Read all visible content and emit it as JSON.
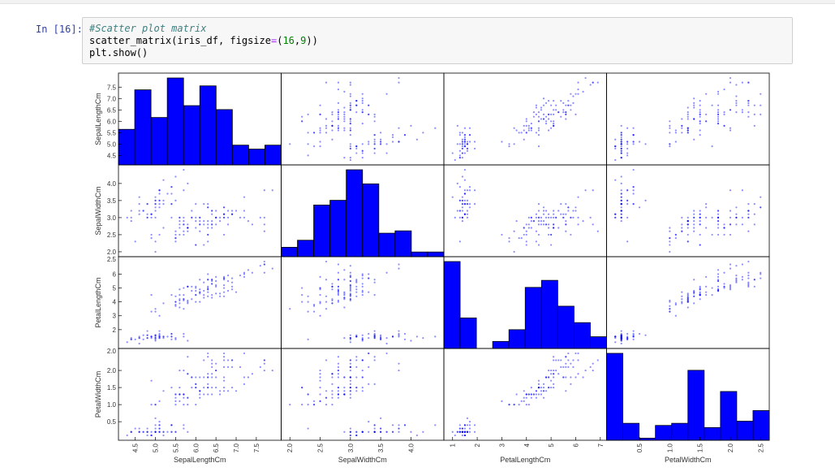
{
  "cell": {
    "prompt": "In [16]:",
    "lines": [
      {
        "comment": "#Scatter plot matrix"
      },
      {
        "parts": [
          "scatter_matrix(iris_df, figsize",
          "=",
          "(",
          "16",
          ",",
          "9",
          "))"
        ]
      },
      {
        "text": "plt.show()"
      }
    ]
  },
  "colors": {
    "marker": "#0000ff",
    "bar": "#0000ff",
    "edge": "#000000"
  },
  "chart_data": {
    "type": "scatter",
    "variables": [
      "SepalLengthCm",
      "SepalWidthCm",
      "PetalLengthCm",
      "PetalWidthCm"
    ],
    "ranges": [
      [
        4.3,
        7.9
      ],
      [
        2.0,
        4.4
      ],
      [
        1.0,
        6.9
      ],
      [
        0.1,
        2.5
      ]
    ],
    "y_ticks": [
      [
        4.5,
        5.0,
        5.5,
        6.0,
        6.5,
        7.0,
        7.5
      ],
      [
        2.0,
        2.5,
        3.0,
        3.5,
        4.0
      ],
      [
        2,
        3,
        4,
        5,
        6
      ],
      [
        0.5,
        1.0,
        1.5,
        2.0
      ]
    ],
    "x_ticks": [
      [
        "4.5",
        "5.0",
        "5.5",
        "6.0",
        "6.5",
        "7.0",
        "7.5"
      ],
      [
        "2.0",
        "2.5",
        "3.0",
        "3.5",
        "4.0"
      ],
      [
        "1",
        "2",
        "3",
        "4",
        "5",
        "6",
        "7"
      ],
      [
        "0.5",
        "1.0",
        "1.5",
        "2.0",
        "2.5"
      ]
    ],
    "y_tick_labels": [
      [
        "4.5",
        "5.0",
        "5.5",
        "6.0",
        "6.5",
        "7.0",
        "7.5"
      ],
      [
        "2.0",
        "2.5",
        "3.0",
        "3.5",
        "4.0"
      ],
      [
        "2",
        "3",
        "4",
        "5",
        "6"
      ],
      [
        "0.5",
        "1.0",
        "1.5",
        "2.0"
      ]
    ],
    "y_extra_labels": [
      "2.5",
      "2.0"
    ],
    "x_tick_values": [
      [
        4.5,
        5.0,
        5.5,
        6.0,
        6.5,
        7.0,
        7.5
      ],
      [
        2.0,
        2.5,
        3.0,
        3.5,
        4.0
      ],
      [
        1,
        2,
        3,
        4,
        5,
        6,
        7
      ],
      [
        0.5,
        1.0,
        1.5,
        2.0,
        2.5
      ]
    ],
    "histograms": [
      [
        9,
        19,
        12,
        22,
        15,
        20,
        14,
        5,
        4,
        5
      ],
      [
        4,
        7,
        22,
        24,
        37,
        31,
        10,
        11,
        2,
        2
      ],
      [
        37,
        13,
        0,
        3,
        8,
        26,
        29,
        18,
        11,
        5
      ],
      [
        41,
        8,
        1,
        7,
        8,
        33,
        6,
        23,
        9,
        14
      ]
    ],
    "points": [
      [
        5.1,
        3.5,
        1.4,
        0.2
      ],
      [
        4.9,
        3.0,
        1.4,
        0.2
      ],
      [
        4.7,
        3.2,
        1.3,
        0.2
      ],
      [
        4.6,
        3.1,
        1.5,
        0.2
      ],
      [
        5.0,
        3.6,
        1.4,
        0.2
      ],
      [
        5.4,
        3.9,
        1.7,
        0.4
      ],
      [
        4.6,
        3.4,
        1.4,
        0.3
      ],
      [
        5.0,
        3.4,
        1.5,
        0.2
      ],
      [
        4.4,
        2.9,
        1.4,
        0.2
      ],
      [
        4.9,
        3.1,
        1.5,
        0.1
      ],
      [
        5.4,
        3.7,
        1.5,
        0.2
      ],
      [
        4.8,
        3.4,
        1.6,
        0.2
      ],
      [
        4.8,
        3.0,
        1.4,
        0.1
      ],
      [
        4.3,
        3.0,
        1.1,
        0.1
      ],
      [
        5.8,
        4.0,
        1.2,
        0.2
      ],
      [
        5.7,
        4.4,
        1.5,
        0.4
      ],
      [
        5.4,
        3.9,
        1.3,
        0.4
      ],
      [
        5.1,
        3.5,
        1.4,
        0.3
      ],
      [
        5.7,
        3.8,
        1.7,
        0.3
      ],
      [
        5.1,
        3.8,
        1.5,
        0.3
      ],
      [
        5.4,
        3.4,
        1.7,
        0.2
      ],
      [
        5.1,
        3.7,
        1.5,
        0.4
      ],
      [
        4.6,
        3.6,
        1.0,
        0.2
      ],
      [
        5.1,
        3.3,
        1.7,
        0.5
      ],
      [
        4.8,
        3.4,
        1.9,
        0.2
      ],
      [
        5.0,
        3.0,
        1.6,
        0.2
      ],
      [
        5.0,
        3.4,
        1.6,
        0.4
      ],
      [
        5.2,
        3.5,
        1.5,
        0.2
      ],
      [
        5.2,
        3.4,
        1.4,
        0.2
      ],
      [
        4.7,
        3.2,
        1.6,
        0.2
      ],
      [
        4.8,
        3.1,
        1.6,
        0.2
      ],
      [
        5.4,
        3.4,
        1.5,
        0.4
      ],
      [
        5.2,
        4.1,
        1.5,
        0.1
      ],
      [
        5.5,
        4.2,
        1.4,
        0.2
      ],
      [
        4.9,
        3.1,
        1.5,
        0.1
      ],
      [
        5.0,
        3.2,
        1.2,
        0.2
      ],
      [
        5.5,
        3.5,
        1.3,
        0.2
      ],
      [
        4.9,
        3.1,
        1.5,
        0.1
      ],
      [
        4.4,
        3.0,
        1.3,
        0.2
      ],
      [
        5.1,
        3.4,
        1.5,
        0.2
      ],
      [
        5.0,
        3.5,
        1.3,
        0.3
      ],
      [
        4.5,
        2.3,
        1.3,
        0.3
      ],
      [
        4.4,
        3.2,
        1.3,
        0.2
      ],
      [
        5.0,
        3.5,
        1.6,
        0.6
      ],
      [
        5.1,
        3.8,
        1.9,
        0.4
      ],
      [
        4.8,
        3.0,
        1.4,
        0.3
      ],
      [
        5.1,
        3.8,
        1.6,
        0.2
      ],
      [
        4.6,
        3.2,
        1.4,
        0.2
      ],
      [
        5.3,
        3.7,
        1.5,
        0.2
      ],
      [
        5.0,
        3.3,
        1.4,
        0.2
      ],
      [
        7.0,
        3.2,
        4.7,
        1.4
      ],
      [
        6.4,
        3.2,
        4.5,
        1.5
      ],
      [
        6.9,
        3.1,
        4.9,
        1.5
      ],
      [
        5.5,
        2.3,
        4.0,
        1.3
      ],
      [
        6.5,
        2.8,
        4.6,
        1.5
      ],
      [
        5.7,
        2.8,
        4.5,
        1.3
      ],
      [
        6.3,
        3.3,
        4.7,
        1.6
      ],
      [
        4.9,
        2.4,
        3.3,
        1.0
      ],
      [
        6.6,
        2.9,
        4.6,
        1.3
      ],
      [
        5.2,
        2.7,
        3.9,
        1.4
      ],
      [
        5.0,
        2.0,
        3.5,
        1.0
      ],
      [
        5.9,
        3.0,
        4.2,
        1.5
      ],
      [
        6.0,
        2.2,
        4.0,
        1.0
      ],
      [
        6.1,
        2.9,
        4.7,
        1.4
      ],
      [
        5.6,
        2.9,
        3.6,
        1.3
      ],
      [
        6.7,
        3.1,
        4.4,
        1.4
      ],
      [
        5.6,
        3.0,
        4.5,
        1.5
      ],
      [
        5.8,
        2.7,
        4.1,
        1.0
      ],
      [
        6.2,
        2.2,
        4.5,
        1.5
      ],
      [
        5.6,
        2.5,
        3.9,
        1.1
      ],
      [
        5.9,
        3.2,
        4.8,
        1.8
      ],
      [
        6.1,
        2.8,
        4.0,
        1.3
      ],
      [
        6.3,
        2.5,
        4.9,
        1.5
      ],
      [
        6.1,
        2.8,
        4.7,
        1.2
      ],
      [
        6.4,
        2.9,
        4.3,
        1.3
      ],
      [
        6.6,
        3.0,
        4.4,
        1.4
      ],
      [
        6.8,
        2.8,
        4.8,
        1.4
      ],
      [
        6.7,
        3.0,
        5.0,
        1.7
      ],
      [
        6.0,
        2.9,
        4.5,
        1.5
      ],
      [
        5.7,
        2.6,
        3.5,
        1.0
      ],
      [
        5.5,
        2.4,
        3.8,
        1.1
      ],
      [
        5.5,
        2.4,
        3.7,
        1.0
      ],
      [
        5.8,
        2.7,
        3.9,
        1.2
      ],
      [
        6.0,
        2.7,
        5.1,
        1.6
      ],
      [
        5.4,
        3.0,
        4.5,
        1.5
      ],
      [
        6.0,
        3.4,
        4.5,
        1.6
      ],
      [
        6.7,
        3.1,
        4.7,
        1.5
      ],
      [
        6.3,
        2.3,
        4.4,
        1.3
      ],
      [
        5.6,
        3.0,
        4.1,
        1.3
      ],
      [
        5.5,
        2.5,
        4.0,
        1.3
      ],
      [
        5.5,
        2.6,
        4.4,
        1.2
      ],
      [
        6.1,
        3.0,
        4.6,
        1.4
      ],
      [
        5.8,
        2.6,
        4.0,
        1.2
      ],
      [
        5.0,
        2.3,
        3.3,
        1.0
      ],
      [
        5.6,
        2.7,
        4.2,
        1.3
      ],
      [
        5.7,
        3.0,
        4.2,
        1.2
      ],
      [
        5.7,
        2.9,
        4.2,
        1.3
      ],
      [
        6.2,
        2.9,
        4.3,
        1.3
      ],
      [
        5.1,
        2.5,
        3.0,
        1.1
      ],
      [
        5.7,
        2.8,
        4.1,
        1.3
      ],
      [
        6.3,
        3.3,
        6.0,
        2.5
      ],
      [
        5.8,
        2.7,
        5.1,
        1.9
      ],
      [
        7.1,
        3.0,
        5.9,
        2.1
      ],
      [
        6.3,
        2.9,
        5.6,
        1.8
      ],
      [
        6.5,
        3.0,
        5.8,
        2.2
      ],
      [
        7.6,
        3.0,
        6.6,
        2.1
      ],
      [
        4.9,
        2.5,
        4.5,
        1.7
      ],
      [
        7.3,
        2.9,
        6.3,
        1.8
      ],
      [
        6.7,
        2.5,
        5.8,
        1.8
      ],
      [
        7.2,
        3.6,
        6.1,
        2.5
      ],
      [
        6.5,
        3.2,
        5.1,
        2.0
      ],
      [
        6.4,
        2.7,
        5.3,
        1.9
      ],
      [
        6.8,
        3.0,
        5.5,
        2.1
      ],
      [
        5.7,
        2.5,
        5.0,
        2.0
      ],
      [
        5.8,
        2.8,
        5.1,
        2.4
      ],
      [
        6.4,
        3.2,
        5.3,
        2.3
      ],
      [
        6.5,
        3.0,
        5.5,
        1.8
      ],
      [
        7.7,
        3.8,
        6.7,
        2.2
      ],
      [
        7.7,
        2.6,
        6.9,
        2.3
      ],
      [
        6.0,
        2.2,
        5.0,
        1.5
      ],
      [
        6.9,
        3.2,
        5.7,
        2.3
      ],
      [
        5.6,
        2.8,
        4.9,
        2.0
      ],
      [
        7.7,
        2.8,
        6.7,
        2.0
      ],
      [
        6.3,
        2.7,
        4.9,
        1.8
      ],
      [
        6.7,
        3.3,
        5.7,
        2.1
      ],
      [
        7.2,
        3.2,
        6.0,
        1.8
      ],
      [
        6.2,
        2.8,
        4.8,
        1.8
      ],
      [
        6.1,
        3.0,
        4.9,
        1.8
      ],
      [
        6.4,
        2.8,
        5.6,
        2.1
      ],
      [
        7.2,
        3.0,
        5.8,
        1.6
      ],
      [
        7.4,
        2.8,
        6.1,
        1.9
      ],
      [
        7.9,
        3.8,
        6.4,
        2.0
      ],
      [
        6.4,
        2.8,
        5.6,
        2.2
      ],
      [
        6.3,
        2.8,
        5.1,
        1.5
      ],
      [
        6.1,
        2.6,
        5.6,
        1.4
      ],
      [
        7.7,
        3.0,
        6.1,
        2.3
      ],
      [
        6.3,
        3.4,
        5.6,
        2.4
      ],
      [
        6.4,
        3.1,
        5.5,
        1.8
      ],
      [
        6.0,
        3.0,
        4.8,
        1.8
      ],
      [
        6.9,
        3.1,
        5.4,
        2.1
      ],
      [
        6.7,
        3.1,
        5.6,
        2.4
      ],
      [
        6.9,
        3.1,
        5.1,
        2.3
      ],
      [
        5.8,
        2.7,
        5.1,
        1.9
      ],
      [
        6.8,
        3.2,
        5.9,
        2.3
      ],
      [
        6.7,
        3.3,
        5.7,
        2.5
      ],
      [
        6.7,
        3.0,
        5.2,
        2.3
      ],
      [
        6.3,
        2.5,
        5.0,
        1.9
      ],
      [
        6.5,
        3.0,
        5.2,
        2.0
      ],
      [
        6.2,
        3.4,
        5.4,
        2.3
      ],
      [
        5.9,
        3.0,
        5.1,
        1.8
      ]
    ]
  }
}
